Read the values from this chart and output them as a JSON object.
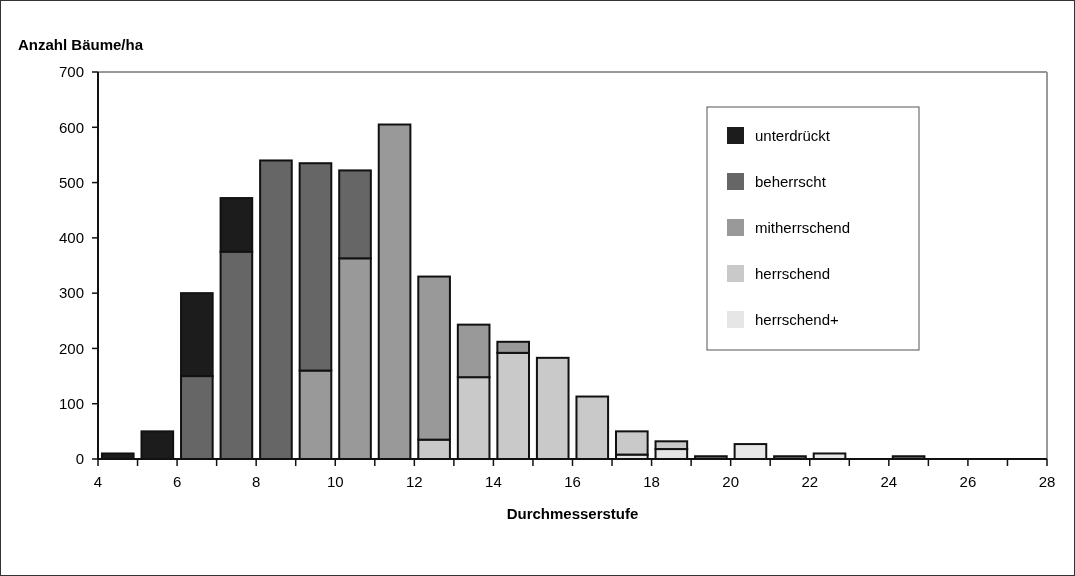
{
  "chart_data": {
    "type": "bar",
    "stacked": true,
    "ylabel": "Anzahl Bäume/ha",
    "xlabel": "Durchmesserstufe",
    "x": [
      4.5,
      5.5,
      6.5,
      7.5,
      8.5,
      9.5,
      10.5,
      11.5,
      12.5,
      13.5,
      14.5,
      15.5,
      16.5,
      17.5,
      18.5,
      19.5,
      20.5,
      21.5,
      22.5,
      23.5,
      24.5,
      25.5,
      26.5,
      27.5
    ],
    "series": [
      {
        "name": "herrschend+",
        "color": "#e6e6e6",
        "values": [
          0,
          0,
          0,
          0,
          0,
          0,
          0,
          0,
          0,
          0,
          0,
          0,
          0,
          8,
          18,
          0,
          27,
          0,
          10,
          0,
          0,
          0,
          0,
          0
        ]
      },
      {
        "name": "herrschend",
        "color": "#c9c9c9",
        "values": [
          0,
          0,
          0,
          0,
          0,
          0,
          0,
          0,
          35,
          148,
          192,
          183,
          113,
          42,
          14,
          0,
          0,
          0,
          0,
          0,
          0,
          0,
          0,
          0
        ]
      },
      {
        "name": "mitherrschend",
        "color": "#999999",
        "values": [
          0,
          0,
          0,
          0,
          0,
          160,
          363,
          605,
          295,
          95,
          20,
          0,
          0,
          0,
          0,
          0,
          0,
          0,
          0,
          0,
          0,
          0,
          0,
          0
        ]
      },
      {
        "name": "beherrscht",
        "color": "#666666",
        "values": [
          0,
          0,
          150,
          375,
          540,
          375,
          159,
          0,
          0,
          0,
          0,
          0,
          0,
          0,
          0,
          5,
          0,
          5,
          0,
          0,
          5,
          0,
          0,
          0
        ]
      },
      {
        "name": "unterdrückt",
        "color": "#1c1c1c",
        "values": [
          10,
          50,
          150,
          97,
          0,
          0,
          0,
          0,
          0,
          0,
          0,
          0,
          0,
          0,
          0,
          0,
          0,
          0,
          0,
          0,
          0,
          0,
          0,
          0
        ]
      }
    ],
    "xlim": [
      4,
      28
    ],
    "xticks": [
      4,
      {
        "value": 5,
        "label": null
      },
      6,
      {
        "value": 7,
        "label": null
      },
      8,
      {
        "value": 9,
        "label": null
      },
      10,
      {
        "value": 11,
        "label": null
      },
      12,
      {
        "value": 13,
        "label": null
      },
      14,
      {
        "value": 15,
        "label": null
      },
      16,
      {
        "value": 17,
        "label": null
      },
      18,
      {
        "value": 19,
        "label": null
      },
      20,
      {
        "value": 21,
        "label": null
      },
      22,
      {
        "value": 23,
        "label": null
      },
      24,
      {
        "value": 25,
        "label": null
      },
      26,
      {
        "value": 27,
        "label": null
      },
      28
    ],
    "ylim": [
      0,
      700
    ],
    "yticks": [
      0,
      100,
      200,
      300,
      400,
      500,
      600,
      700
    ],
    "legend": "top right"
  }
}
